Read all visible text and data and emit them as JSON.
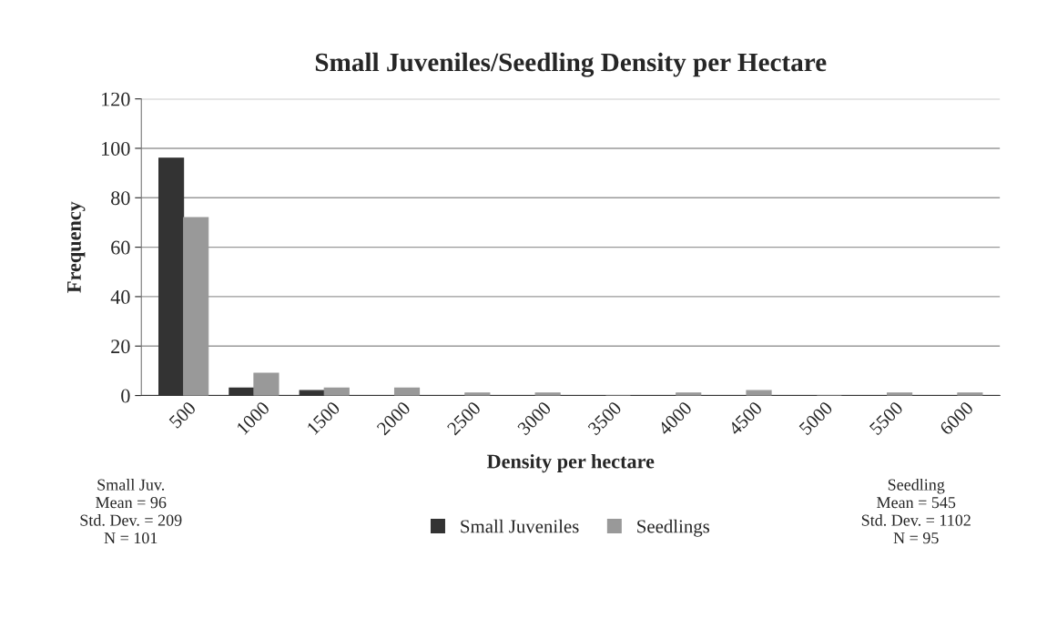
{
  "chart_data": {
    "type": "bar",
    "title": "Small Juveniles/Seedling Density per Hectare",
    "xlabel": "Density per hectare",
    "ylabel": "Frequency",
    "categories": [
      "500",
      "1000",
      "1500",
      "2000",
      "2500",
      "3000",
      "3500",
      "4000",
      "4500",
      "5000",
      "5500",
      "6000"
    ],
    "series": [
      {
        "name": "Small Juveniles",
        "color": "#333333",
        "values": [
          96,
          3,
          2,
          0,
          0,
          0,
          0,
          0,
          0,
          0,
          0,
          0
        ]
      },
      {
        "name": "Seedlings",
        "color": "#999999",
        "values": [
          72,
          9,
          3,
          3,
          1,
          1,
          0,
          1,
          2,
          0,
          1,
          1
        ]
      }
    ],
    "ylim": [
      0,
      120
    ],
    "yticks": [
      0,
      20,
      40,
      60,
      80,
      100,
      120
    ],
    "grid": "y",
    "legend": "bottom",
    "annotations": [
      "Small Juv.\nMean = 96\nStd. Dev. = 209\nN = 101",
      "Seedling\nMean = 545\nStd. Dev. = 1102\nN = 95"
    ]
  }
}
